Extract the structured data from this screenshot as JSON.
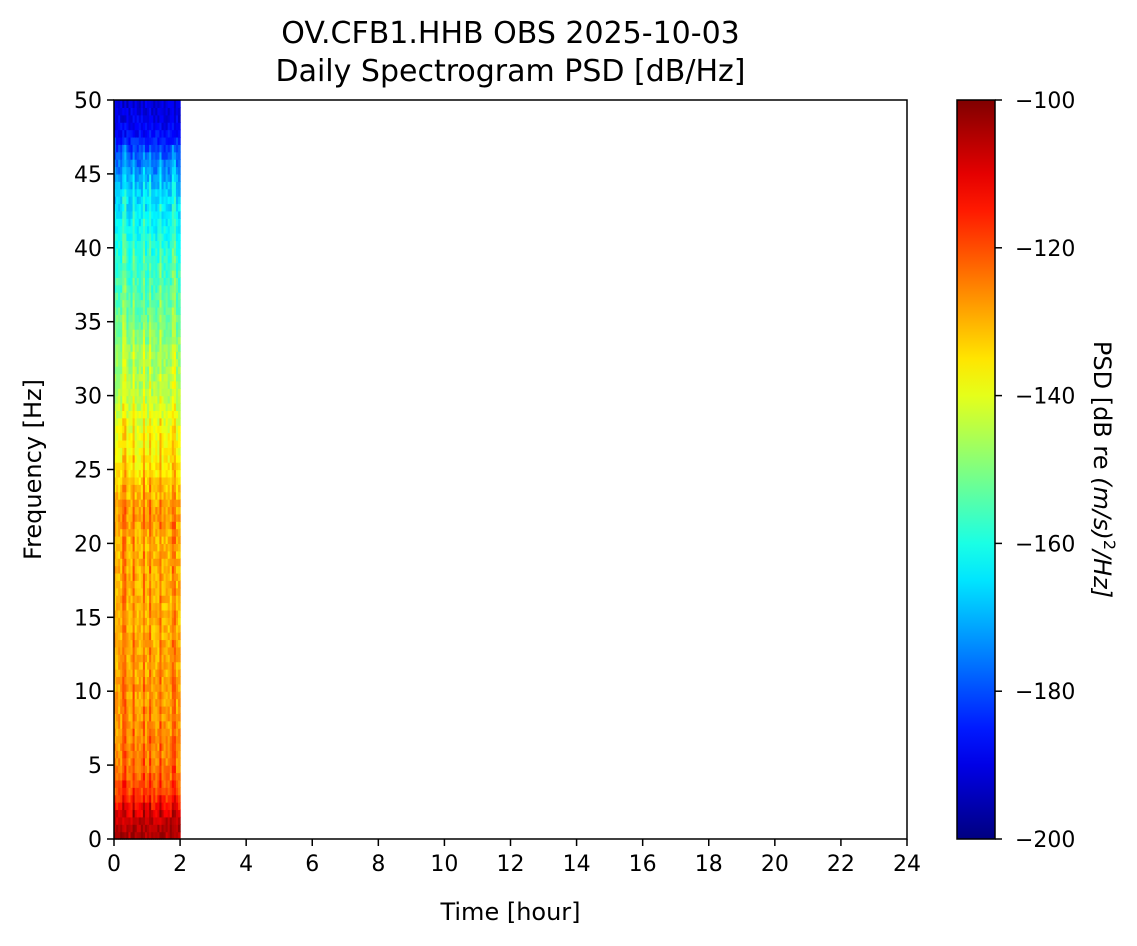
{
  "chart_data": {
    "type": "heatmap",
    "title": "OV.CFB1.HHB OBS 2025-10-03",
    "subtitle": "Daily Spectrogram PSD [dB/Hz]",
    "xlabel": "Time [hour]",
    "ylabel": "Frequency [Hz]",
    "xlim": [
      0,
      24
    ],
    "ylim": [
      0,
      50
    ],
    "x_ticks": [
      "0",
      "2",
      "4",
      "6",
      "8",
      "10",
      "12",
      "14",
      "16",
      "18",
      "20",
      "22",
      "24"
    ],
    "y_ticks": [
      "0",
      "5",
      "10",
      "15",
      "20",
      "25",
      "30",
      "35",
      "40",
      "45",
      "50"
    ],
    "data_extent_hours": [
      0,
      2
    ],
    "colormap": "jet",
    "colorbar": {
      "label_main": "PSD [dB re ",
      "label_math": "(m/s)",
      "label_sup": "2",
      "label_tail": "/Hz]",
      "range": [
        -200,
        -100
      ],
      "ticks": [
        "−200",
        "−180",
        "−160",
        "−140",
        "−120",
        "−100"
      ]
    },
    "psd_profile": {
      "frequencies_hz": [
        0,
        1,
        2,
        3,
        5,
        8,
        10,
        15,
        18,
        20,
        22,
        25,
        28,
        30,
        33,
        35,
        38,
        40,
        42,
        44,
        45,
        46,
        47,
        48,
        50
      ],
      "psd_db": [
        -105,
        -105,
        -112,
        -120,
        -126,
        -128,
        -129,
        -131,
        -130,
        -131,
        -128,
        -136,
        -140,
        -145,
        -148,
        -152,
        -157,
        -160,
        -164,
        -168,
        -173,
        -178,
        -183,
        -188,
        -192
      ]
    },
    "bright_lines_hours": [
      0.3,
      0.6,
      0.9,
      1.1,
      1.4,
      1.8
    ]
  }
}
